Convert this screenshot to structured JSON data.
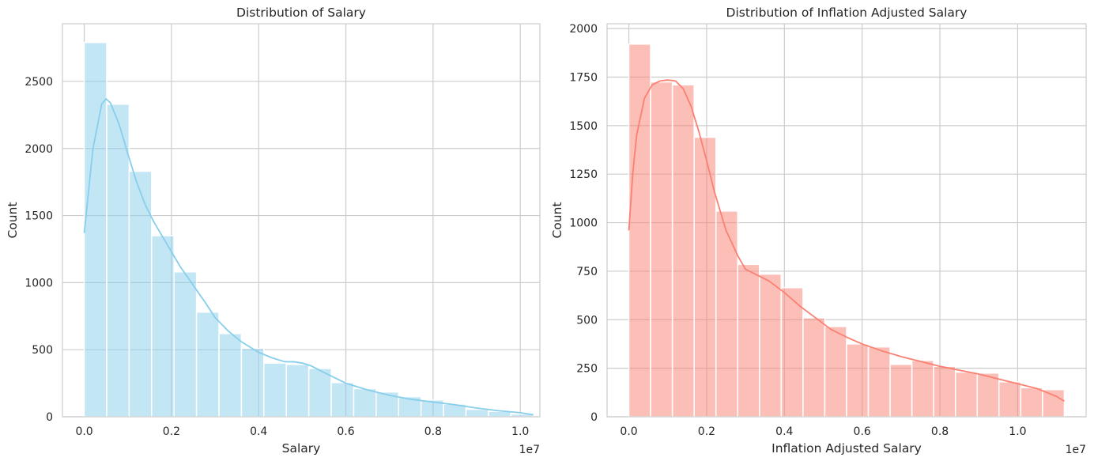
{
  "chart_data": [
    {
      "type": "histogram",
      "title": "Distribution of Salary",
      "xlabel": "Salary",
      "ylabel": "Count",
      "x_offset_label": "1e7",
      "x_scale": 10000000,
      "xlim": [
        -0.05,
        1.045
      ],
      "ylim": [
        0,
        2930
      ],
      "xticks": [
        0.0,
        0.2,
        0.4,
        0.6,
        0.8,
        1.0
      ],
      "xtick_labels": [
        "0.0",
        "0.2",
        "0.4",
        "0.6",
        "0.8",
        "1.0"
      ],
      "yticks": [
        0,
        500,
        1000,
        1500,
        2000,
        2500
      ],
      "ytick_labels": [
        "0",
        "500",
        "1000",
        "1500",
        "2000",
        "2500"
      ],
      "bin_edges": [
        0,
        0.0515,
        0.103,
        0.1545,
        0.206,
        0.2575,
        0.309,
        0.3605,
        0.412,
        0.4635,
        0.515,
        0.5665,
        0.618,
        0.6695,
        0.721,
        0.7725,
        0.824,
        0.8755,
        0.927,
        0.9785,
        1.03
      ],
      "counts": [
        2790,
        2330,
        1830,
        1350,
        1080,
        780,
        620,
        510,
        400,
        390,
        360,
        255,
        210,
        185,
        150,
        125,
        95,
        55,
        40,
        20
      ],
      "kde": {
        "x": [
          0.0,
          0.02,
          0.04,
          0.05,
          0.06,
          0.08,
          0.1,
          0.12,
          0.14,
          0.16,
          0.18,
          0.2,
          0.22,
          0.25,
          0.28,
          0.3,
          0.33,
          0.36,
          0.4,
          0.43,
          0.46,
          0.48,
          0.5,
          0.52,
          0.55,
          0.6,
          0.65,
          0.7,
          0.75,
          0.8,
          0.85,
          0.9,
          0.95,
          1.0,
          1.03
        ],
        "y": [
          1370,
          2000,
          2330,
          2370,
          2340,
          2180,
          1960,
          1750,
          1580,
          1450,
          1340,
          1230,
          1120,
          980,
          840,
          740,
          640,
          560,
          480,
          440,
          410,
          410,
          400,
          380,
          330,
          250,
          200,
          160,
          130,
          110,
          90,
          65,
          45,
          30,
          15
        ]
      },
      "color": "#87ceeb"
    },
    {
      "type": "histogram",
      "title": "Distribution of Inflation Adjusted Salary",
      "xlabel": "Inflation Adjusted Salary",
      "ylabel": "Count",
      "x_offset_label": "1e7",
      "x_scale": 10000000,
      "xlim": [
        -0.056,
        1.176
      ],
      "ylim": [
        0,
        2025
      ],
      "xticks": [
        0.0,
        0.2,
        0.4,
        0.6,
        0.8,
        1.0
      ],
      "xtick_labels": [
        "0.0",
        "0.2",
        "0.4",
        "0.6",
        "0.8",
        "1.0"
      ],
      "yticks": [
        0,
        250,
        500,
        750,
        1000,
        1250,
        1500,
        1750,
        2000
      ],
      "ytick_labels": [
        "0",
        "250",
        "500",
        "750",
        "1000",
        "1250",
        "1500",
        "1750",
        "2000"
      ],
      "bin_edges": [
        0,
        0.056,
        0.112,
        0.168,
        0.224,
        0.28,
        0.336,
        0.392,
        0.448,
        0.504,
        0.56,
        0.616,
        0.672,
        0.728,
        0.784,
        0.84,
        0.896,
        0.952,
        1.008,
        1.064,
        1.12
      ],
      "counts": [
        1920,
        1725,
        1710,
        1440,
        1060,
        785,
        735,
        665,
        510,
        465,
        375,
        360,
        270,
        290,
        260,
        230,
        225,
        180,
        150,
        140
      ],
      "kde": {
        "x": [
          0.0,
          0.01,
          0.02,
          0.04,
          0.06,
          0.08,
          0.1,
          0.12,
          0.14,
          0.16,
          0.18,
          0.2,
          0.22,
          0.25,
          0.28,
          0.3,
          0.33,
          0.36,
          0.4,
          0.44,
          0.48,
          0.52,
          0.56,
          0.6,
          0.65,
          0.7,
          0.75,
          0.8,
          0.85,
          0.9,
          0.95,
          1.0,
          1.05,
          1.1,
          1.12
        ],
        "y": [
          960,
          1250,
          1450,
          1640,
          1710,
          1730,
          1735,
          1730,
          1690,
          1600,
          1470,
          1320,
          1160,
          960,
          830,
          760,
          730,
          700,
          640,
          570,
          510,
          450,
          410,
          375,
          340,
          310,
          285,
          260,
          240,
          220,
          195,
          170,
          145,
          105,
          80
        ]
      },
      "color": "#fa8072"
    }
  ]
}
